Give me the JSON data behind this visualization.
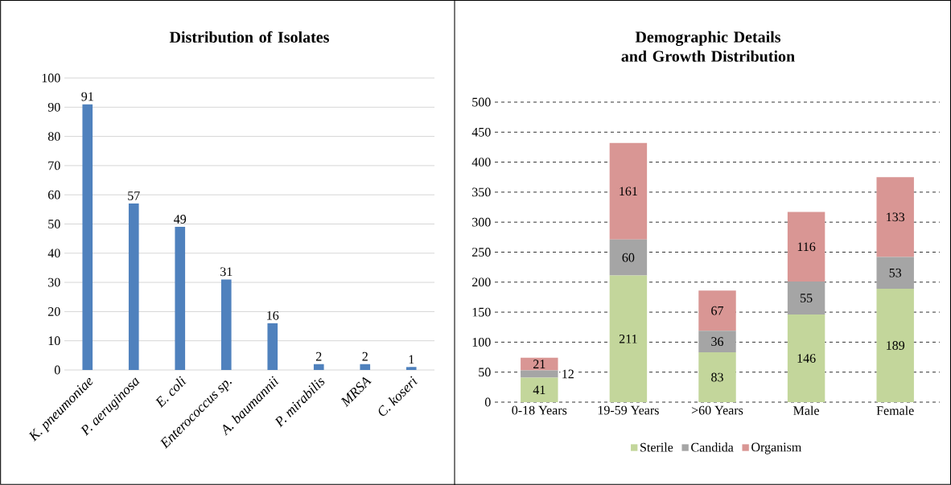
{
  "chart_data": [
    {
      "type": "bar",
      "title": "Distribution of Isolates",
      "categories": [
        "K. pneumoniae",
        "P. aeruginosa",
        "E. coli",
        "Enterococcus sp.",
        "A. baumannii",
        "P. mirabilis",
        "MRSA",
        "C. koseri"
      ],
      "values": [
        91,
        57,
        49,
        31,
        16,
        2,
        2,
        1
      ],
      "color": "#4f81bd",
      "ylim": [
        0,
        100
      ],
      "yticks": [
        0,
        10,
        20,
        30,
        40,
        50,
        60,
        70,
        80,
        90,
        100
      ],
      "grid": "y",
      "data_labels": true
    },
    {
      "type": "bar",
      "title": "Demographic Details and Growth Distribution",
      "categories": [
        "0-18 Years",
        "19-59 Years",
        ">60 Years",
        "Male",
        "Female"
      ],
      "stacked": true,
      "series": [
        {
          "name": "Sterile",
          "color": "#c3d69b",
          "values": [
            41,
            211,
            83,
            146,
            189
          ]
        },
        {
          "name": "Candida",
          "color": "#a5a5a5",
          "values": [
            12,
            60,
            36,
            55,
            53
          ]
        },
        {
          "name": "Organism",
          "color": "#d99694",
          "values": [
            21,
            161,
            67,
            116,
            133
          ]
        }
      ],
      "ylim": [
        0,
        500
      ],
      "yticks": [
        0,
        50,
        100,
        150,
        200,
        250,
        300,
        350,
        400,
        450,
        500
      ],
      "grid": "y",
      "legend": "bottom",
      "data_labels": true
    }
  ]
}
